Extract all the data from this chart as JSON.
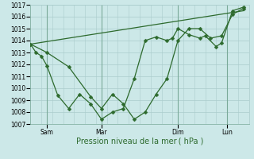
{
  "title": "",
  "xlabel": "Pression niveau de la mer ( hPa )",
  "bg_color": "#cce8e8",
  "grid_color": "#aacccc",
  "vline_color": "#7aaa99",
  "line_color": "#2d6a2d",
  "ylim": [
    1007,
    1017
  ],
  "xlim": [
    0,
    20
  ],
  "yticks": [
    1007,
    1008,
    1009,
    1010,
    1011,
    1012,
    1013,
    1014,
    1015,
    1016,
    1017
  ],
  "vline_positions": [
    1.5,
    6.5,
    13.5,
    18.0
  ],
  "xtick_positions": [
    1.5,
    6.5,
    13.5,
    18.0
  ],
  "xtick_labels": [
    "Sam",
    "Mar",
    "Dim",
    "Lun"
  ],
  "series1_x": [
    0.0,
    0.5,
    1.0,
    1.5,
    2.5,
    3.5,
    4.5,
    5.5,
    6.5,
    7.5,
    8.5,
    9.5,
    10.5,
    11.5,
    12.5,
    13.0,
    13.5,
    14.5,
    15.5,
    16.0,
    17.0,
    17.5,
    18.5,
    19.5
  ],
  "series1_y": [
    1013.7,
    1013.0,
    1012.7,
    1011.9,
    1009.4,
    1008.3,
    1009.5,
    1008.7,
    1007.4,
    1008.0,
    1008.3,
    1010.8,
    1014.0,
    1014.3,
    1014.0,
    1014.2,
    1015.0,
    1014.5,
    1014.2,
    1014.4,
    1013.5,
    1013.8,
    1016.5,
    1016.8
  ],
  "series2_x": [
    0.0,
    1.5,
    3.5,
    5.5,
    6.5,
    7.5,
    8.5,
    9.5,
    10.5,
    11.5,
    12.5,
    13.5,
    14.5,
    15.5,
    16.5,
    17.5,
    18.5,
    19.5
  ],
  "series2_y": [
    1013.7,
    1013.0,
    1011.8,
    1009.3,
    1008.3,
    1009.5,
    1008.7,
    1007.4,
    1008.0,
    1009.5,
    1010.8,
    1014.0,
    1015.0,
    1015.0,
    1014.2,
    1014.4,
    1016.2,
    1016.7
  ],
  "trend_x": [
    0.0,
    19.5
  ],
  "trend_y": [
    1013.7,
    1016.5
  ],
  "marker_size": 2.5,
  "linewidth": 0.9,
  "tick_fontsize": 5.5,
  "xlabel_fontsize": 7
}
